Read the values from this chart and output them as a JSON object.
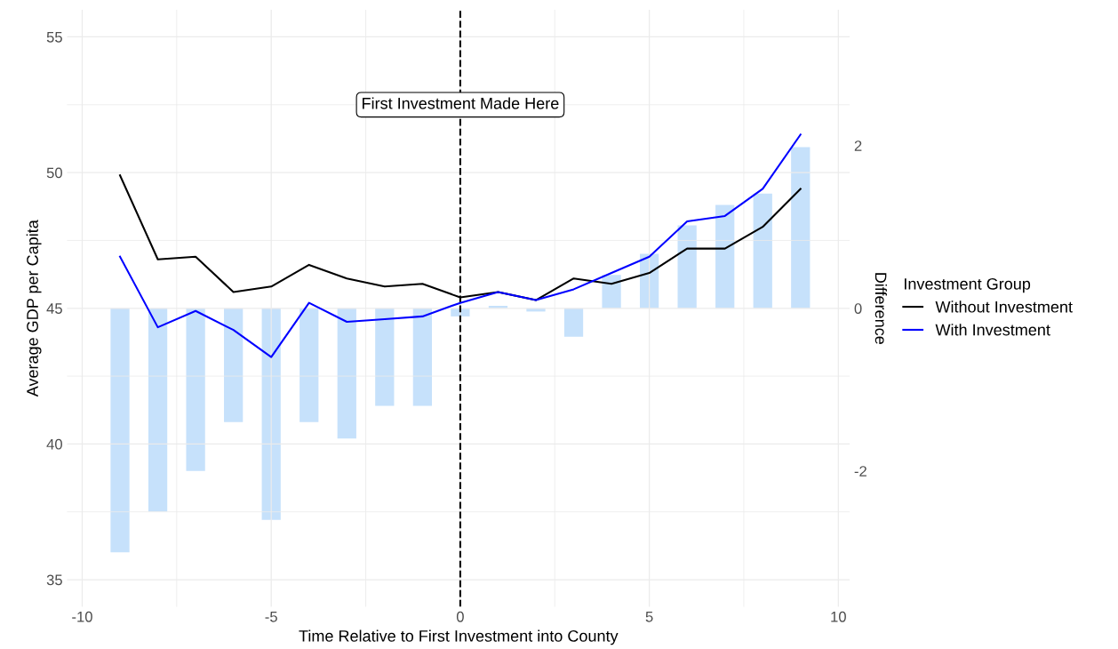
{
  "chart_data": {
    "type": "bar",
    "xlabel": "Time Relative to First Investment into County",
    "ylabel": "Average GDP per Capita",
    "y2label": "Difference",
    "legend_title": "Investment Group",
    "x": [
      -9,
      -8,
      -7,
      -6,
      -5,
      -4,
      -3,
      -2,
      -1,
      0,
      1,
      2,
      3,
      4,
      5,
      6,
      7,
      8,
      9
    ],
    "series": [
      {
        "axis": "y2",
        "color": "#c6e1fb",
        "values": [
          -3.0,
          -2.5,
          -2.0,
          -1.4,
          -2.6,
          -1.4,
          -1.6,
          -1.2,
          -1.2,
          -0.1,
          0.03,
          -0.04,
          -0.35,
          0.41,
          0.67,
          1.02,
          1.27,
          1.41,
          1.98
        ]
      },
      {
        "type": "line",
        "name": "Without Investment",
        "color": "#000000",
        "values": [
          49.9,
          46.8,
          46.9,
          45.6,
          45.8,
          46.6,
          46.1,
          45.8,
          45.9,
          45.4,
          45.6,
          45.3,
          46.1,
          45.9,
          46.3,
          47.2,
          47.2,
          48.0,
          49.4
        ]
      },
      {
        "type": "line",
        "name": "With Investment",
        "color": "#0000ff",
        "values": [
          46.9,
          44.3,
          44.9,
          44.2,
          43.2,
          45.2,
          44.5,
          44.6,
          44.7,
          45.2,
          45.6,
          45.3,
          45.7,
          46.3,
          46.9,
          48.2,
          48.4,
          49.4,
          51.4
        ]
      }
    ],
    "xlim": [
      -10.4,
      10.3
    ],
    "xticks": [
      -10,
      -5,
      0,
      5,
      10
    ],
    "ylim": [
      34,
      56
    ],
    "yticks": [
      35,
      40,
      45,
      50,
      55
    ],
    "y2lim": [
      -3.67,
      3.67
    ],
    "y2ticks": [
      -2,
      0,
      2
    ],
    "ref_lines": [
      {
        "axis": "x",
        "value": 0,
        "color": "#000000",
        "line_style": "dashed"
      }
    ],
    "annotations": [
      {
        "text": "First Investment Made Here",
        "x": 0,
        "y": 52.5
      }
    ],
    "grid": true,
    "legend": "right",
    "line_style": "solid",
    "marker": "none"
  }
}
